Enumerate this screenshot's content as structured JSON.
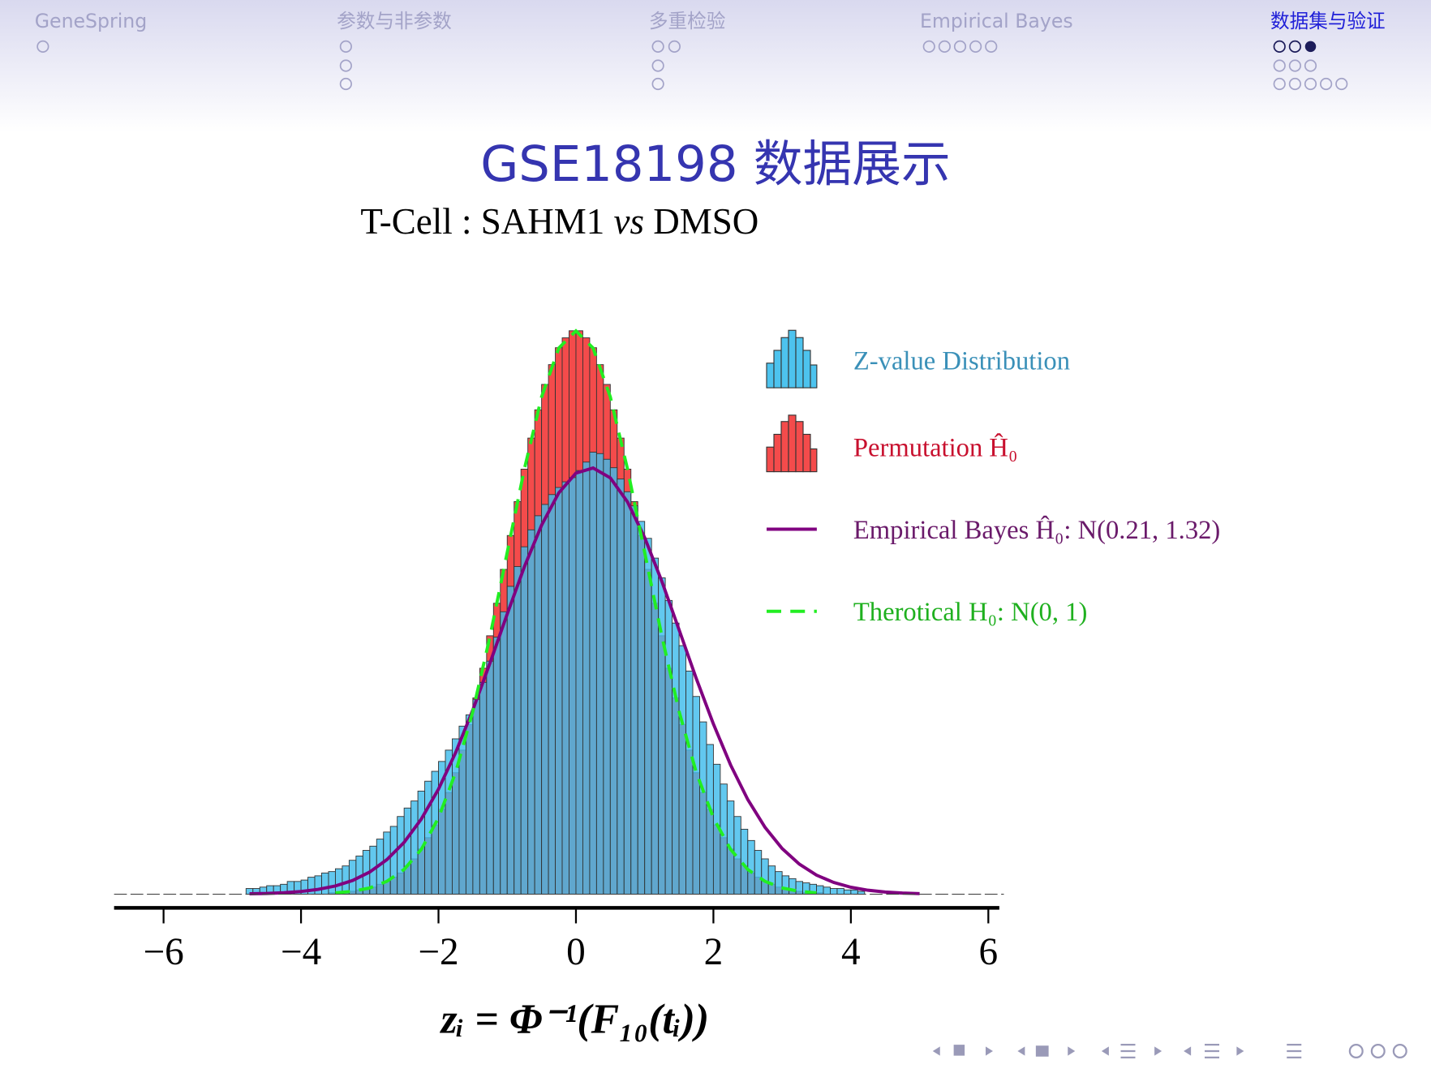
{
  "nav": {
    "sections": [
      "GeneSpring",
      "参数与非参数",
      "多重检验",
      "Empirical Bayes",
      "数据集与验证"
    ]
  },
  "chart_data": {
    "type": "histogram",
    "title": "GSE18198 数据展示",
    "subtitle": [
      "T-Cell : SAHM1",
      "vs",
      "DMSO"
    ],
    "x_label": "zᵢ = Φ⁻¹(F₁₀(tᵢ))",
    "xlim": [
      -6.72,
      6.16
    ],
    "xticks": [
      {
        "value": -6,
        "label": "−6"
      },
      {
        "value": -4,
        "label": "−4"
      },
      {
        "value": -2,
        "label": "−2"
      },
      0,
      2,
      4,
      6
    ],
    "ylim": [
      0,
      0.42
    ],
    "bins": [
      -4.8,
      -4.7,
      -4.6,
      -4.5,
      -4.4,
      -4.3,
      -4.2,
      -4.1,
      -4.0,
      -3.9,
      -3.8,
      -3.7,
      -3.6,
      -3.5,
      -3.4,
      -3.3,
      -3.2,
      -3.1,
      -3.0,
      -2.9,
      -2.8,
      -2.7,
      -2.6,
      -2.5,
      -2.4,
      -2.3,
      -2.2,
      -2.1,
      -2.0,
      -1.9,
      -1.8,
      -1.7,
      -1.6,
      -1.5,
      -1.4,
      -1.3,
      -1.2,
      -1.1,
      -1.0,
      -0.9,
      -0.8,
      -0.7,
      -0.6,
      -0.5,
      -0.4,
      -0.3,
      -0.2,
      -0.1,
      0.0,
      0.1,
      0.2,
      0.3,
      0.4,
      0.5,
      0.6,
      0.7,
      0.8,
      0.9,
      1.0,
      1.1,
      1.2,
      1.3,
      1.4,
      1.5,
      1.6,
      1.7,
      1.8,
      1.9,
      2.0,
      2.1,
      2.2,
      2.3,
      2.4,
      2.5,
      2.6,
      2.7,
      2.8,
      2.9,
      3.0,
      3.1,
      3.2,
      3.3,
      3.4,
      3.5,
      3.6,
      3.7,
      3.8,
      3.9,
      4.0,
      4.1,
      4.2
    ],
    "series": [
      {
        "name": "Permutation Ĥ₀",
        "color": "#f44b4b",
        "label_color": "#c8102e",
        "values": [
          0,
          0,
          0,
          0,
          0,
          0,
          0,
          0,
          0,
          0,
          0,
          0,
          0.001,
          0.001,
          0.001,
          0.002,
          0.003,
          0.004,
          0.005,
          0.007,
          0.009,
          0.012,
          0.015,
          0.02,
          0.025,
          0.032,
          0.04,
          0.049,
          0.06,
          0.072,
          0.086,
          0.102,
          0.12,
          0.139,
          0.16,
          0.183,
          0.206,
          0.23,
          0.254,
          0.278,
          0.301,
          0.323,
          0.343,
          0.361,
          0.375,
          0.387,
          0.394,
          0.399,
          0.399,
          0.394,
          0.387,
          0.375,
          0.361,
          0.343,
          0.323,
          0.301,
          0.278,
          0.254,
          0.23,
          0.206,
          0.183,
          0.16,
          0.139,
          0.12,
          0.102,
          0.086,
          0.072,
          0.06,
          0.049,
          0.04,
          0.032,
          0.025,
          0.02,
          0.015,
          0.012,
          0.009,
          0.007,
          0.005,
          0.004,
          0.003,
          0.002,
          0.001,
          0.001,
          0.001,
          0,
          0,
          0,
          0,
          0,
          0
        ]
      },
      {
        "name": "Z-value Distribution",
        "color": "#3fbcec",
        "label_color": "#3a90b8",
        "values": [
          0.004,
          0.004,
          0.005,
          0.006,
          0.006,
          0.007,
          0.009,
          0.009,
          0.01,
          0.012,
          0.013,
          0.015,
          0.016,
          0.018,
          0.02,
          0.024,
          0.027,
          0.031,
          0.034,
          0.039,
          0.044,
          0.048,
          0.055,
          0.061,
          0.066,
          0.073,
          0.08,
          0.087,
          0.094,
          0.102,
          0.11,
          0.119,
          0.127,
          0.138,
          0.15,
          0.165,
          0.182,
          0.2,
          0.218,
          0.232,
          0.246,
          0.258,
          0.268,
          0.276,
          0.283,
          0.288,
          0.292,
          0.295,
          0.3,
          0.306,
          0.313,
          0.312,
          0.308,
          0.302,
          0.294,
          0.285,
          0.275,
          0.264,
          0.252,
          0.238,
          0.224,
          0.208,
          0.192,
          0.176,
          0.158,
          0.14,
          0.122,
          0.106,
          0.092,
          0.078,
          0.066,
          0.055,
          0.046,
          0.038,
          0.031,
          0.025,
          0.02,
          0.016,
          0.013,
          0.011,
          0.009,
          0.008,
          0.007,
          0.006,
          0.005,
          0.004,
          0.004,
          0.003,
          0.003,
          0.002
        ]
      }
    ],
    "lines": [
      {
        "name": "Empirical Bayes Ĥ₀: N(0.21, 1.32)",
        "color": "#800080",
        "label_color": "#6a1a6a",
        "dashed": false,
        "x": [
          -4.75,
          -4.5,
          -4.25,
          -4.0,
          -3.75,
          -3.5,
          -3.25,
          -3.0,
          -2.75,
          -2.5,
          -2.25,
          -2.0,
          -1.75,
          -1.5,
          -1.25,
          -1.0,
          -0.75,
          -0.5,
          -0.25,
          0,
          0.25,
          0.5,
          0.75,
          1.0,
          1.25,
          1.5,
          1.75,
          2.0,
          2.25,
          2.5,
          2.75,
          3.0,
          3.25,
          3.5,
          3.75,
          4.0,
          4.25,
          4.5,
          4.75,
          5.0
        ],
        "values": [
          0.0003,
          0.0005,
          0.001,
          0.0019,
          0.0034,
          0.0058,
          0.0097,
          0.0157,
          0.0245,
          0.0367,
          0.0532,
          0.0744,
          0.1003,
          0.1305,
          0.1638,
          0.1984,
          0.2319,
          0.2613,
          0.2842,
          0.2982,
          0.3018,
          0.2948,
          0.2778,
          0.2525,
          0.2215,
          0.1873,
          0.1528,
          0.1205,
          0.0915,
          0.067,
          0.0474,
          0.0323,
          0.0213,
          0.0135,
          0.0083,
          0.0049,
          0.0028,
          0.0015,
          0.0008,
          0.0004
        ]
      },
      {
        "name": "Therotical H₀: N(0, 1)",
        "color": "#22ee22",
        "label_color": "#1fb01f",
        "dashed": true,
        "x": [
          -3.5,
          -3.25,
          -3.0,
          -2.75,
          -2.5,
          -2.25,
          -2.0,
          -1.75,
          -1.5,
          -1.25,
          -1.0,
          -0.75,
          -0.5,
          -0.25,
          0,
          0.25,
          0.5,
          0.75,
          1.0,
          1.25,
          1.5,
          1.75,
          2.0,
          2.25,
          2.5,
          2.75,
          3.0,
          3.25,
          3.5
        ],
        "values": [
          0.0009,
          0.002,
          0.0044,
          0.0091,
          0.0175,
          0.0317,
          0.054,
          0.0863,
          0.1295,
          0.1826,
          0.242,
          0.3011,
          0.3521,
          0.3867,
          0.3989,
          0.3867,
          0.3521,
          0.3011,
          0.242,
          0.1826,
          0.1295,
          0.0863,
          0.054,
          0.0317,
          0.0175,
          0.0091,
          0.0044,
          0.002,
          0.0009
        ]
      }
    ]
  }
}
